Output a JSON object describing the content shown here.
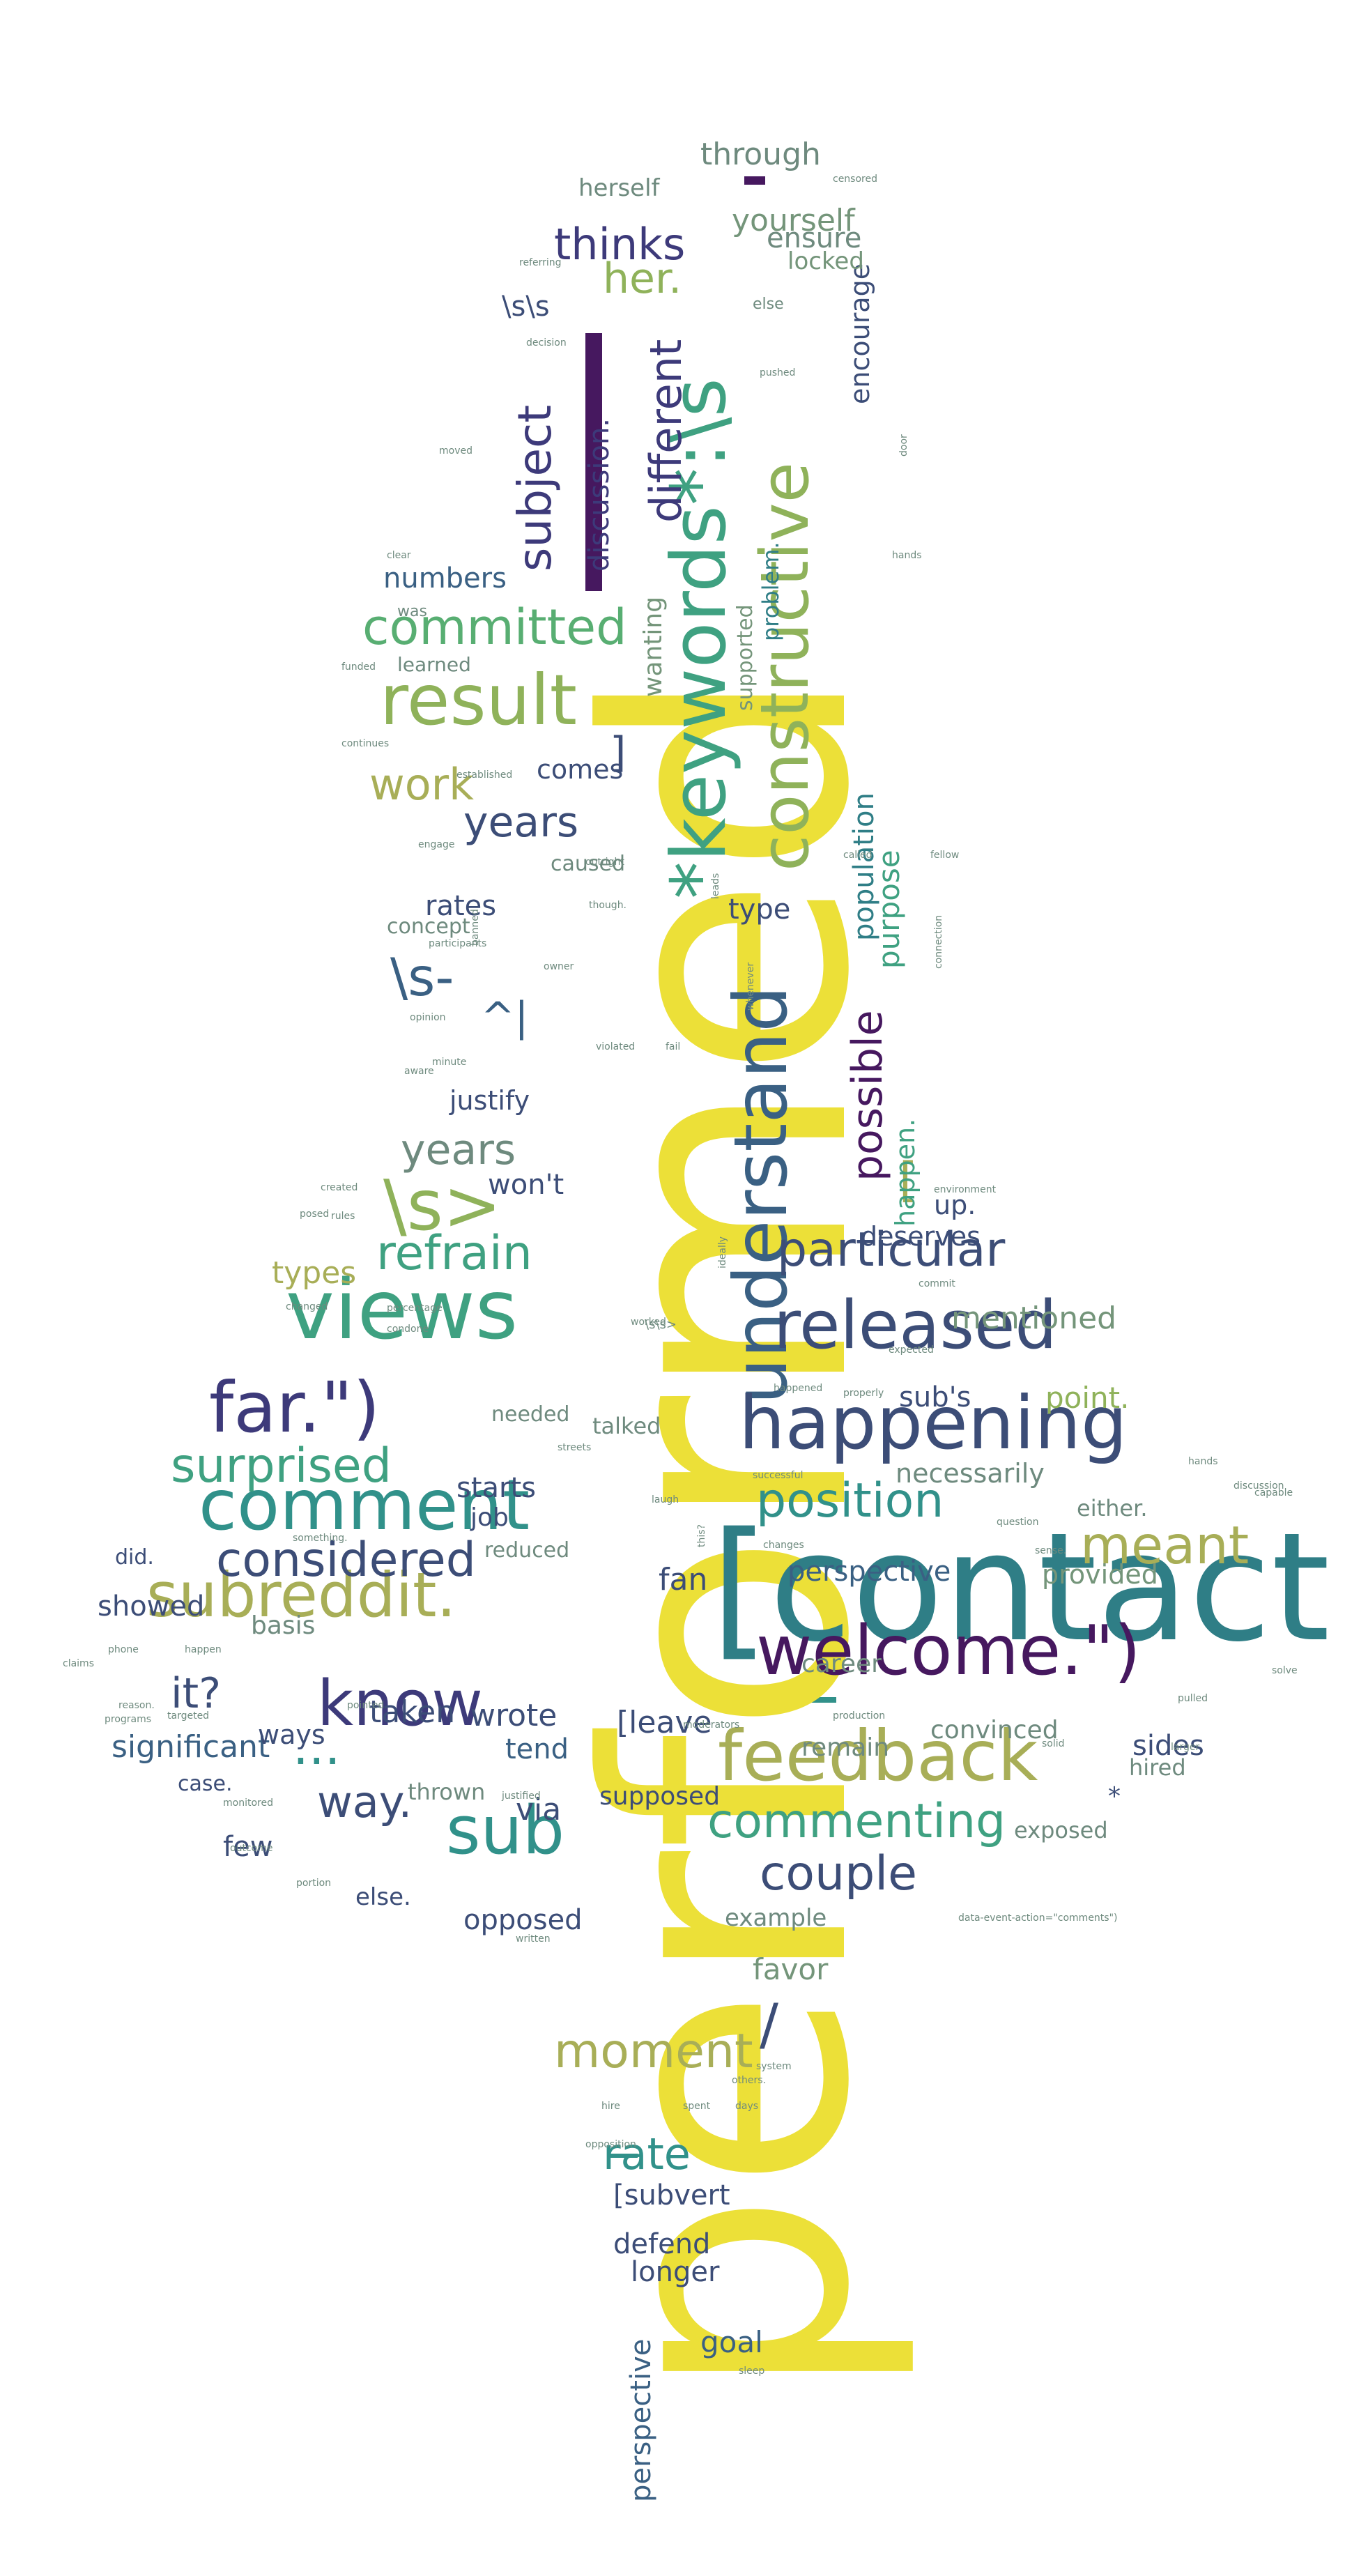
{
  "cloud": {
    "palette": {
      "deep_purple": "#46185f",
      "purple": "#3d3a7a",
      "slate": "#3c4d77",
      "steel": "#3a6083",
      "teal_blue": "#2f7e86",
      "teal": "#31918a",
      "sea_green": "#3fa181",
      "green": "#58ae72",
      "yellow_green": "#8fb25a",
      "olive": "#a8ae57",
      "sage": "#74957a",
      "grey_green": "#6e8a7e",
      "yellow": "#ece038"
    },
    "words": [
      {
        "text": "performed",
        "color": "yellow"
      },
      {
        "text": "[contact",
        "color": "teal_blue"
      },
      {
        "text": "understand",
        "color": "steel"
      },
      {
        "text": "*keywords*:\\s",
        "color": "sea_green"
      },
      {
        "text": "constructive",
        "color": "yellow_green"
      },
      {
        "text": "views",
        "color": "sea_green"
      },
      {
        "text": "released",
        "color": "slate"
      },
      {
        "text": "happening",
        "color": "slate"
      },
      {
        "text": "welcome.\")",
        "color": "deep_purple"
      },
      {
        "text": "feedback",
        "color": "olive"
      },
      {
        "text": "far.\")",
        "color": "purple"
      },
      {
        "text": "comment",
        "color": "teal"
      },
      {
        "text": "subreddit.",
        "color": "olive"
      },
      {
        "text": "result",
        "color": "yellow_green"
      },
      {
        "text": "committed",
        "color": "green"
      },
      {
        "text": "sub",
        "color": "teal"
      },
      {
        "text": "know",
        "color": "purple"
      },
      {
        "text": "commenting",
        "color": "sea_green"
      },
      {
        "text": "couple",
        "color": "slate"
      },
      {
        "text": "particular",
        "color": "slate"
      },
      {
        "text": "considered",
        "color": "slate"
      },
      {
        "text": "position",
        "color": "teal"
      },
      {
        "text": "surprised",
        "color": "sea_green"
      },
      {
        "text": "refrain",
        "color": "sea_green"
      },
      {
        "text": "\\s>",
        "color": "yellow_green"
      },
      {
        "text": "moment",
        "color": "olive"
      },
      {
        "text": "meant",
        "color": "olive"
      },
      {
        "text": "years",
        "color": "slate"
      },
      {
        "text": "years",
        "color": "grey_green"
      },
      {
        "text": "subject",
        "color": "purple"
      },
      {
        "text": "different",
        "color": "purple"
      },
      {
        "text": "thinks",
        "color": "purple"
      },
      {
        "text": "her.",
        "color": "yellow_green"
      },
      {
        "text": "work",
        "color": "olive"
      },
      {
        "text": "\\s-",
        "color": "steel"
      },
      {
        "text": "possible",
        "color": "deep_purple"
      },
      {
        "text": "rate",
        "color": "teal"
      },
      {
        "text": "way.",
        "color": "slate"
      },
      {
        "text": "...",
        "color": "teal"
      },
      {
        "text": "it?",
        "color": "slate"
      },
      {
        "text": "discussion.",
        "color": "purple"
      },
      {
        "text": "problem.",
        "color": "teal_blue"
      },
      {
        "text": "population",
        "color": "teal_blue"
      },
      {
        "text": "purpose",
        "color": "sea_green"
      },
      {
        "text": "encourage",
        "color": "slate"
      },
      {
        "text": "through",
        "color": "grey_green"
      },
      {
        "text": "yourself",
        "color": "sage"
      },
      {
        "text": "ensure",
        "color": "grey_green"
      },
      {
        "text": "locked",
        "color": "sage"
      },
      {
        "text": "herself",
        "color": "grey_green"
      },
      {
        "text": "\\s\\s",
        "color": "slate"
      },
      {
        "text": "numbers",
        "color": "steel"
      },
      {
        "text": "wanting",
        "color": "sage"
      },
      {
        "text": "supported",
        "color": "sage"
      },
      {
        "text": "learned",
        "color": "grey_green"
      },
      {
        "text": "]",
        "color": "slate"
      },
      {
        "text": "comes",
        "color": "slate"
      },
      {
        "text": "caused",
        "color": "grey_green"
      },
      {
        "text": "type",
        "color": "slate"
      },
      {
        "text": "rates",
        "color": "slate"
      },
      {
        "text": "concept",
        "color": "grey_green"
      },
      {
        "text": "^|",
        "color": "steel"
      },
      {
        "text": "justify",
        "color": "slate"
      },
      {
        "text": "won't",
        "color": "slate"
      },
      {
        "text": "[",
        "color": "olive"
      },
      {
        "text": "happen.",
        "color": "sea_green"
      },
      {
        "text": "up.",
        "color": "slate"
      },
      {
        "text": "deserves",
        "color": "slate"
      },
      {
        "text": "types",
        "color": "olive"
      },
      {
        "text": "mentioned",
        "color": "sage"
      },
      {
        "text": "point.",
        "color": "yellow_green"
      },
      {
        "text": "sub's",
        "color": "slate"
      },
      {
        "text": "needed",
        "color": "grey_green"
      },
      {
        "text": "talked",
        "color": "grey_green"
      },
      {
        "text": "starts",
        "color": "slate"
      },
      {
        "text": "necessarily",
        "color": "grey_green"
      },
      {
        "text": "job",
        "color": "slate"
      },
      {
        "text": "either.",
        "color": "grey_green"
      },
      {
        "text": "reduced",
        "color": "grey_green"
      },
      {
        "text": "fan",
        "color": "slate"
      },
      {
        "text": "perspective",
        "color": "steel"
      },
      {
        "text": "provided",
        "color": "sage"
      },
      {
        "text": "showed",
        "color": "slate"
      },
      {
        "text": "basis",
        "color": "grey_green"
      },
      {
        "text": "did.",
        "color": "slate"
      },
      {
        "text": "career",
        "color": "grey_green"
      },
      {
        "text": "taken",
        "color": "slate"
      },
      {
        "text": "wrote",
        "color": "slate"
      },
      {
        "text": "[leave",
        "color": "slate"
      },
      {
        "text": "tend",
        "color": "steel"
      },
      {
        "text": "significant",
        "color": "steel"
      },
      {
        "text": "ways",
        "color": "slate"
      },
      {
        "text": "remain",
        "color": "grey_green"
      },
      {
        "text": "convinced",
        "color": "grey_green"
      },
      {
        "text": "sides",
        "color": "slate"
      },
      {
        "text": "hired",
        "color": "grey_green"
      },
      {
        "text": "case.",
        "color": "slate"
      },
      {
        "text": "thrown",
        "color": "grey_green"
      },
      {
        "text": "via",
        "color": "slate"
      },
      {
        "text": "supposed",
        "color": "slate"
      },
      {
        "text": "*",
        "color": "slate"
      },
      {
        "text": "exposed",
        "color": "grey_green"
      },
      {
        "text": "few",
        "color": "slate"
      },
      {
        "text": "else.",
        "color": "slate"
      },
      {
        "text": "opposed",
        "color": "slate"
      },
      {
        "text": "example",
        "color": "grey_green"
      },
      {
        "text": "favor",
        "color": "sage"
      },
      {
        "text": "/",
        "color": "slate"
      },
      {
        "text": "[subvert",
        "color": "slate"
      },
      {
        "text": "defend",
        "color": "slate"
      },
      {
        "text": "longer",
        "color": "slate"
      },
      {
        "text": "goal",
        "color": "steel"
      },
      {
        "text": "perspective",
        "color": "steel"
      },
      {
        "text": "else",
        "color": "grey_green"
      },
      {
        "text": "censored",
        "color": "grey_green"
      },
      {
        "text": "referring",
        "color": "grey_green"
      },
      {
        "text": "decision",
        "color": "grey_green"
      },
      {
        "text": "pushed",
        "color": "grey_green"
      },
      {
        "text": "moved",
        "color": "grey_green"
      },
      {
        "text": "clear",
        "color": "grey_green"
      },
      {
        "text": "funded",
        "color": "grey_green"
      },
      {
        "text": "continues",
        "color": "grey_green"
      },
      {
        "text": "established",
        "color": "grey_green"
      },
      {
        "text": "engage",
        "color": "grey_green"
      },
      {
        "text": "outright",
        "color": "grey_green"
      },
      {
        "text": "though.",
        "color": "grey_green"
      },
      {
        "text": "participants",
        "color": "grey_green"
      },
      {
        "text": "banned",
        "color": "grey_green"
      },
      {
        "text": "opinion",
        "color": "grey_green"
      },
      {
        "text": "minute",
        "color": "grey_green"
      },
      {
        "text": "violated",
        "color": "grey_green"
      },
      {
        "text": "fail",
        "color": "grey_green"
      },
      {
        "text": "created",
        "color": "grey_green"
      },
      {
        "text": "posed",
        "color": "grey_green"
      },
      {
        "text": "changed",
        "color": "grey_green"
      },
      {
        "text": "percentage",
        "color": "grey_green"
      },
      {
        "text": "condone",
        "color": "grey_green"
      },
      {
        "text": "streets",
        "color": "grey_green"
      },
      {
        "text": "worked",
        "color": "grey_green"
      },
      {
        "text": "\\s\\s>",
        "color": "grey_green"
      },
      {
        "text": "happened",
        "color": "grey_green"
      },
      {
        "text": "properly",
        "color": "grey_green"
      },
      {
        "text": "expected",
        "color": "grey_green"
      },
      {
        "text": "laugh",
        "color": "grey_green"
      },
      {
        "text": "successful",
        "color": "grey_green"
      },
      {
        "text": "question",
        "color": "grey_green"
      },
      {
        "text": "sense.",
        "color": "grey_green"
      },
      {
        "text": "something.",
        "color": "grey_green"
      },
      {
        "text": "phone",
        "color": "grey_green"
      },
      {
        "text": "happen",
        "color": "grey_green"
      },
      {
        "text": "claims",
        "color": "grey_green"
      },
      {
        "text": "reason.",
        "color": "grey_green"
      },
      {
        "text": "programs",
        "color": "grey_green"
      },
      {
        "text": "targeted",
        "color": "grey_green"
      },
      {
        "text": "pointed",
        "color": "grey_green"
      },
      {
        "text": "moderators",
        "color": "grey_green"
      },
      {
        "text": "production",
        "color": "grey_green"
      },
      {
        "text": "solid",
        "color": "grey_green"
      },
      {
        "text": "larger",
        "color": "grey_green"
      },
      {
        "text": "pulled",
        "color": "grey_green"
      },
      {
        "text": "solve",
        "color": "grey_green"
      },
      {
        "text": "hands",
        "color": "grey_green"
      },
      {
        "text": "discussion",
        "color": "grey_green"
      },
      {
        "text": "monitored",
        "color": "grey_green"
      },
      {
        "text": "outcome",
        "color": "grey_green"
      },
      {
        "text": "portion",
        "color": "grey_green"
      },
      {
        "text": "justified",
        "color": "grey_green"
      },
      {
        "text": "data-event-action=\"comments\")",
        "color": "grey_green"
      },
      {
        "text": "written",
        "color": "grey_green"
      },
      {
        "text": "system",
        "color": "grey_green"
      },
      {
        "text": "others.",
        "color": "grey_green"
      },
      {
        "text": "days",
        "color": "grey_green"
      },
      {
        "text": "hire",
        "color": "grey_green"
      },
      {
        "text": "spent",
        "color": "grey_green"
      },
      {
        "text": "opposition",
        "color": "grey_green"
      },
      {
        "text": "sleep",
        "color": "grey_green"
      },
      {
        "text": "door",
        "color": "grey_green"
      },
      {
        "text": "hands",
        "color": "grey_green"
      },
      {
        "text": "capable",
        "color": "grey_green"
      },
      {
        "text": "connection",
        "color": "grey_green"
      },
      {
        "text": "called",
        "color": "grey_green"
      },
      {
        "text": "environment",
        "color": "grey_green"
      },
      {
        "text": "commit",
        "color": "grey_green"
      },
      {
        "text": "this?",
        "color": "grey_green"
      },
      {
        "text": "changes",
        "color": "grey_green"
      },
      {
        "text": "rules",
        "color": "grey_green"
      },
      {
        "text": "owner",
        "color": "grey_green"
      },
      {
        "text": "ideally",
        "color": "grey_green"
      },
      {
        "text": "leads",
        "color": "grey_green"
      },
      {
        "text": "whenever",
        "color": "grey_green"
      },
      {
        "text": "aware",
        "color": "grey_green"
      },
      {
        "text": "was",
        "color": "grey_green"
      },
      {
        "text": "fellow",
        "color": "grey_green"
      }
    ]
  }
}
